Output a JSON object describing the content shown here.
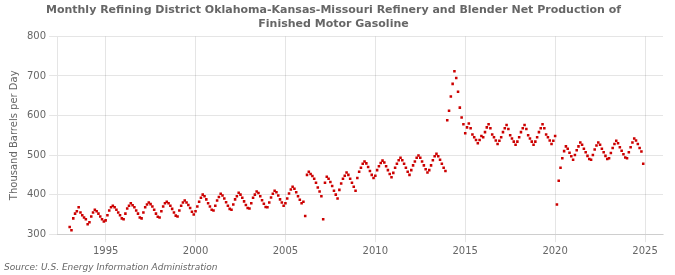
{
  "chart_data": {
    "type": "scatter",
    "title": "Monthly Refining District Oklahoma-Kansas-Missouri Refinery and Blender Net Production of\nFinished Motor Gasoline",
    "ylabel": "Thousand Barrels per Day",
    "annotations": [
      "Source: U.S. Energy Information Administration"
    ],
    "color": "#cc0000",
    "marker": "square",
    "grid": true,
    "xlim": [
      1992.3,
      2026.0
    ],
    "xticks": [
      1995,
      2000,
      2005,
      2010,
      2015,
      2020,
      2025
    ],
    "ylim": [
      300,
      800
    ],
    "yticks": [
      300,
      400,
      500,
      600,
      700,
      800
    ],
    "x": [
      1993.0,
      1993.1,
      1993.2,
      1993.3,
      1993.4,
      1993.5,
      1993.6,
      1993.7,
      1993.8,
      1993.9,
      1994.0,
      1994.1,
      1994.2,
      1994.3,
      1994.4,
      1994.5,
      1994.6,
      1994.7,
      1994.8,
      1994.9,
      1995.0,
      1995.1,
      1995.2,
      1995.3,
      1995.4,
      1995.5,
      1995.6,
      1995.7,
      1995.8,
      1995.9,
      1996.0,
      1996.1,
      1996.2,
      1996.3,
      1996.4,
      1996.5,
      1996.6,
      1996.7,
      1996.8,
      1996.9,
      1997.0,
      1997.1,
      1997.2,
      1997.3,
      1997.4,
      1997.5,
      1997.6,
      1997.7,
      1997.8,
      1997.9,
      1998.0,
      1998.1,
      1998.2,
      1998.3,
      1998.4,
      1998.5,
      1998.6,
      1998.7,
      1998.8,
      1998.9,
      1999.0,
      1999.1,
      1999.2,
      1999.3,
      1999.4,
      1999.5,
      1999.6,
      1999.7,
      1999.8,
      1999.9,
      2000.0,
      2000.1,
      2000.2,
      2000.3,
      2000.4,
      2000.5,
      2000.6,
      2000.7,
      2000.8,
      2000.9,
      2001.0,
      2001.1,
      2001.2,
      2001.3,
      2001.4,
      2001.5,
      2001.6,
      2001.7,
      2001.8,
      2001.9,
      2002.0,
      2002.1,
      2002.2,
      2002.3,
      2002.4,
      2002.5,
      2002.6,
      2002.7,
      2002.8,
      2002.9,
      2003.0,
      2003.1,
      2003.2,
      2003.3,
      2003.4,
      2003.5,
      2003.6,
      2003.7,
      2003.8,
      2003.9,
      2004.0,
      2004.1,
      2004.2,
      2004.3,
      2004.4,
      2004.5,
      2004.6,
      2004.7,
      2004.8,
      2004.9,
      2005.0,
      2005.1,
      2005.2,
      2005.3,
      2005.4,
      2005.5,
      2005.6,
      2005.7,
      2005.8,
      2005.9,
      2006.0,
      2006.1,
      2006.2,
      2006.3,
      2006.4,
      2006.5,
      2006.6,
      2006.7,
      2006.8,
      2006.9,
      2007.0,
      2007.1,
      2007.2,
      2007.3,
      2007.4,
      2007.5,
      2007.6,
      2007.7,
      2007.8,
      2007.9,
      2008.0,
      2008.1,
      2008.2,
      2008.3,
      2008.4,
      2008.5,
      2008.6,
      2008.7,
      2008.8,
      2008.9,
      2009.0,
      2009.1,
      2009.2,
      2009.3,
      2009.4,
      2009.5,
      2009.6,
      2009.7,
      2009.8,
      2009.9,
      2010.0,
      2010.1,
      2010.2,
      2010.3,
      2010.4,
      2010.5,
      2010.6,
      2010.7,
      2010.8,
      2010.9,
      2011.0,
      2011.1,
      2011.2,
      2011.3,
      2011.4,
      2011.5,
      2011.6,
      2011.7,
      2011.8,
      2011.9,
      2012.0,
      2012.1,
      2012.2,
      2012.3,
      2012.4,
      2012.5,
      2012.6,
      2012.7,
      2012.8,
      2012.9,
      2013.0,
      2013.1,
      2013.2,
      2013.3,
      2013.4,
      2013.5,
      2013.6,
      2013.7,
      2013.8,
      2013.9,
      2014.0,
      2014.1,
      2014.2,
      2014.3,
      2014.4,
      2014.5,
      2014.6,
      2014.7,
      2014.8,
      2014.9,
      2015.0,
      2015.1,
      2015.2,
      2015.3,
      2015.4,
      2015.5,
      2015.6,
      2015.7,
      2015.8,
      2015.9,
      2016.0,
      2016.1,
      2016.2,
      2016.3,
      2016.4,
      2016.5,
      2016.6,
      2016.7,
      2016.8,
      2016.9,
      2017.0,
      2017.1,
      2017.2,
      2017.3,
      2017.4,
      2017.5,
      2017.6,
      2017.7,
      2017.8,
      2017.9,
      2018.0,
      2018.1,
      2018.2,
      2018.3,
      2018.4,
      2018.5,
      2018.6,
      2018.7,
      2018.8,
      2018.9,
      2019.0,
      2019.1,
      2019.2,
      2019.3,
      2019.4,
      2019.5,
      2019.6,
      2019.7,
      2019.8,
      2019.9,
      2020.0,
      2020.1,
      2020.2,
      2020.3,
      2020.4,
      2020.5,
      2020.6,
      2020.7,
      2020.8,
      2020.9,
      2021.0,
      2021.1,
      2021.2,
      2021.3,
      2021.4,
      2021.5,
      2021.6,
      2021.7,
      2021.8,
      2021.9,
      2022.0,
      2022.1,
      2022.2,
      2022.3,
      2022.4,
      2022.5,
      2022.6,
      2022.7,
      2022.8,
      2022.9,
      2023.0,
      2023.1,
      2023.2,
      2023.3,
      2023.4,
      2023.5,
      2023.6,
      2023.7,
      2023.8,
      2023.9,
      2024.0,
      2024.1,
      2024.2,
      2024.3,
      2024.4,
      2024.5,
      2024.6,
      2024.7,
      2024.8,
      2024.9
    ],
    "values": [
      318,
      310,
      340,
      352,
      358,
      368,
      355,
      348,
      342,
      338,
      325,
      330,
      345,
      355,
      362,
      358,
      352,
      345,
      338,
      332,
      335,
      348,
      360,
      368,
      372,
      368,
      362,
      355,
      348,
      340,
      338,
      352,
      365,
      372,
      378,
      373,
      368,
      360,
      352,
      342,
      340,
      355,
      368,
      375,
      380,
      376,
      370,
      362,
      352,
      344,
      342,
      358,
      370,
      378,
      382,
      378,
      372,
      364,
      355,
      347,
      345,
      360,
      372,
      380,
      385,
      380,
      374,
      366,
      357,
      350,
      358,
      370,
      382,
      392,
      400,
      396,
      388,
      378,
      370,
      362,
      360,
      372,
      385,
      394,
      402,
      398,
      390,
      381,
      372,
      364,
      362,
      375,
      388,
      396,
      405,
      400,
      392,
      383,
      374,
      366,
      365,
      378,
      392,
      400,
      408,
      404,
      396,
      386,
      377,
      369,
      368,
      380,
      393,
      402,
      410,
      406,
      398,
      388,
      380,
      372,
      378,
      390,
      403,
      413,
      420,
      415,
      406,
      396,
      387,
      378,
      382,
      346,
      450,
      458,
      452,
      447,
      440,
      430,
      418,
      408,
      396,
      338,
      430,
      445,
      440,
      432,
      422,
      410,
      400,
      390,
      412,
      428,
      440,
      448,
      456,
      450,
      440,
      430,
      420,
      410,
      442,
      458,
      468,
      478,
      484,
      479,
      470,
      460,
      450,
      442,
      448,
      462,
      472,
      480,
      486,
      481,
      472,
      462,
      452,
      444,
      455,
      468,
      478,
      487,
      493,
      487,
      478,
      468,
      458,
      450,
      462,
      474,
      484,
      493,
      499,
      493,
      484,
      474,
      464,
      456,
      462,
      474,
      487,
      497,
      503,
      497,
      488,
      478,
      468,
      460,
      588,
      612,
      648,
      680,
      712,
      695,
      660,
      620,
      595,
      578,
      555,
      570,
      580,
      568,
      552,
      545,
      538,
      530,
      538,
      548,
      545,
      558,
      570,
      578,
      568,
      552,
      545,
      537,
      528,
      536,
      545,
      558,
      568,
      576,
      566,
      550,
      542,
      534,
      526,
      534,
      545,
      558,
      568,
      576,
      566,
      550,
      542,
      534,
      526,
      534,
      545,
      558,
      568,
      578,
      568,
      552,
      545,
      537,
      528,
      536,
      548,
      375,
      435,
      468,
      492,
      510,
      522,
      516,
      506,
      497,
      488,
      500,
      512,
      522,
      532,
      526,
      516,
      507,
      498,
      490,
      488,
      500,
      514,
      524,
      532,
      526,
      516,
      507,
      498,
      490,
      492,
      505,
      518,
      528,
      536,
      530,
      520,
      511,
      502,
      494,
      492,
      507,
      520,
      532,
      542,
      537,
      528,
      518,
      509,
      478
    ]
  }
}
